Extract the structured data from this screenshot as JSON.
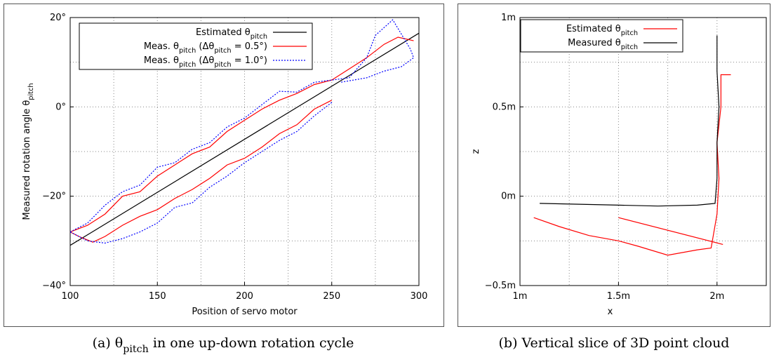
{
  "chart_data": [
    {
      "type": "line",
      "caption": "(a) θpitch in one up-down rotation cycle",
      "xlabel": "Position of servo motor",
      "ylabel": "Measured rotation angle θpitch",
      "xlim": [
        100,
        300
      ],
      "ylim": [
        -40,
        20
      ],
      "xticks": [
        100,
        150,
        200,
        250,
        300
      ],
      "minor_xticks": [
        125,
        175,
        225,
        275
      ],
      "yticks": [
        {
          "value": -40,
          "label": "−40°"
        },
        {
          "value": -20,
          "label": "−20°"
        },
        {
          "value": 0,
          "label": "0°"
        },
        {
          "value": 20,
          "label": "20°"
        }
      ],
      "minor_yticks": [
        -30,
        -10,
        10
      ],
      "grid": true,
      "legend": "upper left",
      "series": [
        {
          "name": "Estimated θpitch",
          "color": "#000000",
          "style": "solid",
          "x": [
            100,
            300
          ],
          "values": [
            -31,
            16.5
          ]
        },
        {
          "name": "Meas. θpitch (Δθpitch = 0.5°)",
          "color": "#ff0000",
          "style": "solid",
          "x": [
            100,
            110,
            120,
            130,
            140,
            150,
            160,
            170,
            180,
            190,
            200,
            210,
            220,
            230,
            240,
            250,
            260,
            270,
            280,
            288,
            297,
            null,
            250,
            240,
            230,
            220,
            210,
            200,
            190,
            180,
            170,
            160,
            150,
            140,
            130,
            120,
            113,
            105,
            100
          ],
          "values": [
            -28,
            -26.5,
            -24,
            -20,
            -19,
            -15.5,
            -13,
            -10.5,
            -9,
            -5.5,
            -3,
            -0.5,
            1.5,
            3,
            5,
            6,
            8.5,
            11,
            14,
            15.6,
            14.8,
            null,
            1.5,
            -0.5,
            -4,
            -6,
            -9,
            -11.5,
            -13,
            -16,
            -18.5,
            -20.5,
            -23,
            -24.5,
            -26.5,
            -29,
            -30.3,
            -29,
            -28
          ]
        },
        {
          "name": "Meas. θpitch (Δθpitch = 1.0°)",
          "color": "#0000ff",
          "style": "dotted",
          "x": [
            100,
            110,
            120,
            130,
            140,
            150,
            160,
            170,
            180,
            190,
            200,
            210,
            220,
            230,
            240,
            250,
            260,
            270,
            275,
            285,
            295,
            297,
            290,
            280,
            270,
            255,
            null,
            250,
            240,
            230,
            220,
            210,
            200,
            190,
            180,
            170,
            160,
            150,
            140,
            130,
            120,
            110,
            100
          ],
          "values": [
            -28,
            -26,
            -22,
            -19,
            -17.5,
            -13.5,
            -12.5,
            -9.5,
            -8,
            -4.5,
            -2.5,
            0.5,
            3.5,
            3.3,
            5.5,
            6,
            6.5,
            11,
            16,
            19.5,
            13,
            11,
            9,
            8,
            6.5,
            5.5,
            null,
            1,
            -2,
            -5.5,
            -7.5,
            -10,
            -12.5,
            -15.5,
            -18,
            -21.5,
            -22.5,
            -26,
            -28,
            -29.5,
            -30.5,
            -30,
            -28
          ]
        }
      ]
    },
    {
      "type": "line",
      "caption": "(b) Vertical slice of 3D point cloud",
      "xlabel": "x",
      "ylabel": "z",
      "xlim": [
        1,
        2.25
      ],
      "ylim": [
        -0.5,
        1
      ],
      "xticks": [
        {
          "value": 1,
          "label": "1m"
        },
        {
          "value": 1.5,
          "label": "1.5m"
        },
        {
          "value": 2,
          "label": "2m"
        }
      ],
      "minor_xticks": [
        1.25,
        1.75
      ],
      "yticks": [
        {
          "value": -0.5,
          "label": "−0.5m"
        },
        {
          "value": 0,
          "label": "0m"
        },
        {
          "value": 0.5,
          "label": "0.5m"
        },
        {
          "value": 1,
          "label": "1m"
        }
      ],
      "minor_yticks": [
        -0.25,
        0.25,
        0.75
      ],
      "grid": true,
      "legend": "upper left",
      "series": [
        {
          "name": "Estimated θpitch",
          "color": "#ff0000",
          "style": "solid",
          "x": [
            1.07,
            1.2,
            1.35,
            1.5,
            1.6,
            1.75,
            1.9,
            1.97,
            2.0,
            2.01,
            2.0,
            2.02,
            2.02,
            2.07,
            null,
            1.5,
            2.03
          ],
          "values": [
            -0.12,
            -0.17,
            -0.22,
            -0.25,
            -0.28,
            -0.33,
            -0.3,
            -0.29,
            -0.1,
            0.1,
            0.3,
            0.5,
            0.68,
            0.68,
            null,
            -0.12,
            -0.27
          ]
        },
        {
          "name": "Measured θpitch",
          "color": "#000000",
          "style": "solid",
          "x": [
            1.1,
            1.3,
            1.5,
            1.7,
            1.9,
            1.99,
            2.0,
            2.0,
            2.01,
            2.0,
            2.0
          ],
          "values": [
            -0.04,
            -0.045,
            -0.05,
            -0.055,
            -0.05,
            -0.04,
            0.1,
            0.3,
            0.5,
            0.7,
            0.9
          ]
        }
      ]
    }
  ]
}
